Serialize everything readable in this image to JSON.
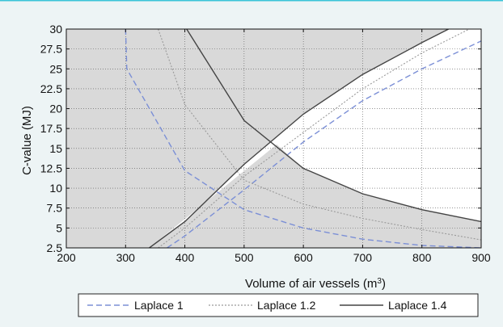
{
  "chart_data": {
    "type": "line",
    "xlabel": "Volume of air vessels (m",
    "xlabel_sup": "3",
    "xlabel_suffix": ")",
    "ylabel": "C-value (MJ)",
    "xlim": [
      200,
      900
    ],
    "ylim": [
      2.5,
      30
    ],
    "x_ticks": [
      200,
      300,
      400,
      500,
      600,
      700,
      800,
      900
    ],
    "x_tick_labels": [
      "200",
      "300",
      "400",
      "500",
      "600",
      "700",
      "800",
      "900"
    ],
    "y_ticks": [
      2.5,
      5,
      7.5,
      10,
      12.5,
      15,
      17.5,
      20,
      22.5,
      25,
      27.5,
      30
    ],
    "y_tick_labels": [
      "2.5",
      "5",
      "7.5",
      "10",
      "12.5",
      "15",
      "17.5",
      "20",
      "22.5",
      "25",
      "27.5",
      "30"
    ],
    "grid": true,
    "legend_position": "bottom",
    "shaded_region": "outside the feasible region bounded by the Laplace 1.4 curves",
    "colors": {
      "plot_background": "#ffffff",
      "shade": "#d9d9d9",
      "laplace_1": "#7b8fd6",
      "laplace_1_2": "#9a9a9a",
      "laplace_1_4": "#444444",
      "frame_border": "#3cc4d8"
    },
    "series": [
      {
        "name": "Laplace 1",
        "style": "dashed",
        "curves": [
          {
            "x": [
              300,
              302,
              400,
              500,
              600,
              700,
              800,
              900
            ],
            "y": [
              30,
              25,
              12.2,
              7.3,
              5.0,
              3.6,
              2.8,
              2.5
            ]
          },
          {
            "x": [
              370,
              400,
              500,
              600,
              700,
              800,
              900
            ],
            "y": [
              2.5,
              4.0,
              9.8,
              15.8,
              21.0,
              25.0,
              28.5
            ]
          }
        ]
      },
      {
        "name": "Laplace 1.2",
        "style": "dotted",
        "curves": [
          {
            "x": [
              355,
              400,
              500,
              600,
              700,
              800,
              900
            ],
            "y": [
              30,
              20.5,
              11.0,
              8.0,
              6.2,
              4.8,
              3.5
            ]
          },
          {
            "x": [
              355,
              400,
              500,
              600,
              700,
              800,
              880
            ],
            "y": [
              2.5,
              5.0,
              11.5,
              17.0,
              22.5,
              27.0,
              30
            ]
          }
        ]
      },
      {
        "name": "Laplace 1.4",
        "style": "solid",
        "curves": [
          {
            "x": [
              403,
              500,
              600,
              700,
              800,
              900
            ],
            "y": [
              30,
              18.5,
              12.5,
              9.3,
              7.3,
              5.8
            ]
          },
          {
            "x": [
              340,
              400,
              500,
              600,
              700,
              800,
              845
            ],
            "y": [
              2.5,
              5.8,
              13.0,
              19.3,
              24.3,
              28.3,
              30
            ]
          }
        ]
      }
    ]
  }
}
